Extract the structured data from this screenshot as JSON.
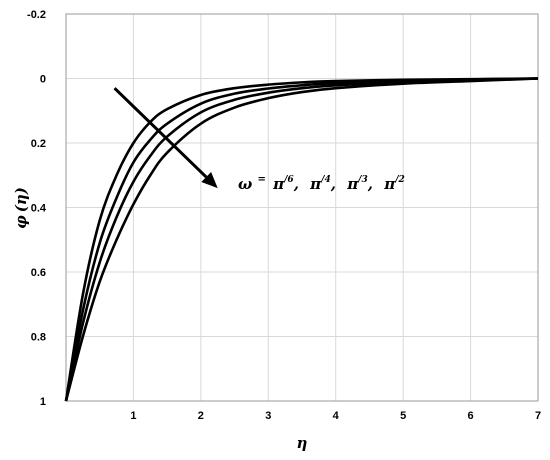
{
  "chart_data": {
    "type": "line",
    "title": "",
    "xlabel": "η",
    "ylabel_main": "φ",
    "ylabel_sub": "(η)",
    "xlim": [
      0,
      7
    ],
    "ylim": [
      -0.2,
      1
    ],
    "y_inverted": true,
    "grid": true,
    "x_ticks": [
      {
        "value": 1,
        "label": "1"
      },
      {
        "value": 2,
        "label": "2"
      },
      {
        "value": 3,
        "label": "3"
      },
      {
        "value": 4,
        "label": "4"
      },
      {
        "value": 5,
        "label": "5"
      },
      {
        "value": 6,
        "label": "6"
      },
      {
        "value": 7,
        "label": "7"
      }
    ],
    "y_ticks": [
      {
        "value": -0.2,
        "label": "-0.2"
      },
      {
        "value": 0,
        "label": "0"
      },
      {
        "value": 0.2,
        "label": "0.2"
      },
      {
        "value": 0.4,
        "label": "0.4"
      },
      {
        "value": 0.6,
        "label": "0.6"
      },
      {
        "value": 0.8,
        "label": "0.8"
      },
      {
        "value": 1,
        "label": "1"
      }
    ],
    "series": [
      {
        "x": [
          0,
          0.25,
          0.5,
          0.75,
          1,
          1.25,
          1.5,
          2,
          2.5,
          3,
          3.5,
          4,
          5,
          6,
          7
        ],
        "y": [
          1,
          0.67,
          0.44,
          0.3,
          0.2,
          0.135,
          0.095,
          0.051,
          0.03,
          0.019,
          0.012,
          0.008,
          0.004,
          0.002,
          0
        ]
      },
      {
        "x": [
          0,
          0.25,
          0.5,
          0.75,
          1,
          1.25,
          1.5,
          2,
          2.5,
          3,
          3.5,
          4,
          5,
          6,
          7
        ],
        "y": [
          1,
          0.72,
          0.51,
          0.37,
          0.26,
          0.19,
          0.14,
          0.078,
          0.047,
          0.031,
          0.021,
          0.014,
          0.007,
          0.003,
          0
        ]
      },
      {
        "x": [
          0,
          0.25,
          0.5,
          0.75,
          1,
          1.25,
          1.5,
          2,
          2.5,
          3,
          3.5,
          4,
          5,
          6,
          7
        ],
        "y": [
          1,
          0.76,
          0.57,
          0.43,
          0.32,
          0.24,
          0.18,
          0.105,
          0.066,
          0.044,
          0.03,
          0.021,
          0.011,
          0.005,
          0
        ]
      },
      {
        "x": [
          0,
          0.25,
          0.5,
          0.75,
          1,
          1.25,
          1.5,
          2,
          2.5,
          3,
          3.5,
          4,
          5,
          6,
          7
        ],
        "y": [
          1,
          0.8,
          0.63,
          0.5,
          0.39,
          0.3,
          0.23,
          0.14,
          0.09,
          0.061,
          0.042,
          0.03,
          0.016,
          0.008,
          0
        ]
      }
    ],
    "annotation": {
      "omega": "ω",
      "equals": "=",
      "values": [
        {
          "pi": "π",
          "den": "/6"
        },
        {
          "pi": "π",
          "den": "/4"
        },
        {
          "pi": "π",
          "den": "/3"
        },
        {
          "pi": "π",
          "den": "/2"
        }
      ],
      "separator": ",",
      "arrow_from": {
        "x": 0.72,
        "y": 0.03
      },
      "arrow_to": {
        "x": 2.25,
        "y": 0.34
      }
    }
  }
}
